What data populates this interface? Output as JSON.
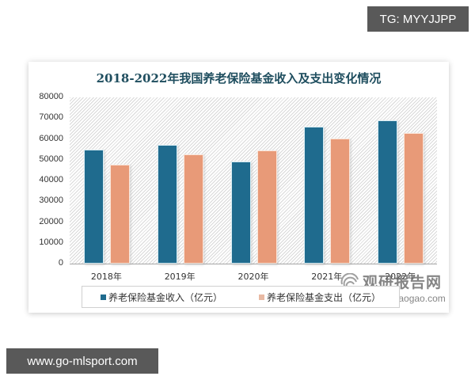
{
  "overlays": {
    "tg_label": "TG: MYYJJPP",
    "site_label": "www.go-mlsport.com"
  },
  "watermark": {
    "cn": "观研报告网",
    "url": "chinabaogao.com"
  },
  "colors": {
    "income": "#1f6b8e",
    "expense": "#e89a78",
    "title": "#1f4e5f"
  },
  "chart_data": {
    "type": "bar",
    "title": "2018-2022年我国养老保险基金收入及支出变化情况",
    "xlabel": "",
    "ylabel": "",
    "categories": [
      "2018年",
      "2019年",
      "2020年",
      "2021年",
      "2022年"
    ],
    "series": [
      {
        "name": "养老保险基金收入（亿元）",
        "values": [
          54900,
          57100,
          49100,
          65900,
          68900
        ]
      },
      {
        "name": "养老保险基金支出（亿元）",
        "values": [
          47600,
          52600,
          54500,
          60200,
          62900
        ]
      }
    ],
    "ylim": [
      0,
      80000
    ],
    "yticks": [
      "80000",
      "70000",
      "60000",
      "50000",
      "40000",
      "30000",
      "20000",
      "10000",
      "0"
    ],
    "grid": false,
    "legend_position": "bottom"
  }
}
